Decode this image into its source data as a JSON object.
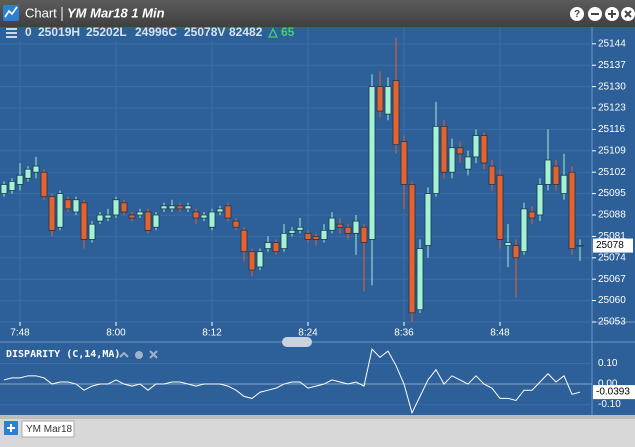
{
  "header": {
    "title": "Chart",
    "symbol": "YM Mar18 1 Min"
  },
  "readout": {
    "fields": [
      "0",
      "25019H",
      "25202L",
      "24996C",
      "25078V",
      "82482"
    ],
    "change": "65"
  },
  "chart_data": [
    {
      "type": "candlestick",
      "open": [
        25095,
        25096,
        25098,
        25100,
        25102,
        25102,
        25094,
        25084,
        25093,
        25089,
        25092,
        25080,
        25086,
        25087,
        25088,
        25092,
        25088,
        25088,
        25089,
        25084,
        25090,
        25090,
        25091,
        25090,
        25089,
        25087,
        25084,
        25089,
        25091,
        25086,
        25083,
        25076,
        25071,
        25077,
        25079,
        25077,
        25082,
        25083,
        25082,
        25081,
        25080,
        25083,
        25085,
        25084,
        25082,
        25084,
        25080,
        25130,
        25121,
        25132,
        25112,
        25098,
        25057,
        25078,
        25095,
        25117,
        25102,
        25110,
        25103,
        25107,
        25114,
        25104,
        25101,
        25078,
        25078,
        25076,
        25089,
        25088,
        25098,
        25104,
        25095,
        25102,
        25078
      ],
      "high": [
        25099,
        25100,
        25105,
        25104,
        25107,
        25103,
        25095,
        25096,
        25094,
        25094,
        25093,
        25086,
        25089,
        25090,
        25094,
        25093,
        25089,
        25090,
        25090,
        25089,
        25092,
        25093,
        25092,
        25092,
        25090,
        25089,
        25090,
        25091,
        25092,
        25087,
        25084,
        25077,
        25077,
        25081,
        25080,
        25085,
        25084,
        25087,
        25083,
        25082,
        25085,
        25089,
        25087,
        25085,
        25088,
        25085,
        25134,
        25135,
        25133,
        25146,
        25114,
        25099,
        25080,
        25097,
        25125,
        25119,
        25113,
        25112,
        25109,
        25116,
        25115,
        25106,
        25103,
        25085,
        25080,
        25092,
        25091,
        25100,
        25116,
        25106,
        25108,
        25104,
        25080
      ],
      "low": [
        25094,
        25095,
        25096,
        25099,
        25100,
        25093,
        25081,
        25083,
        25089,
        25088,
        25077,
        25079,
        25085,
        25086,
        25087,
        25088,
        25086,
        25087,
        25082,
        25083,
        25089,
        25089,
        25089,
        25089,
        25085,
        25086,
        25083,
        25088,
        25086,
        25083,
        25073,
        25068,
        25070,
        25076,
        25075,
        25076,
        25081,
        25082,
        25079,
        25078,
        25079,
        25082,
        25082,
        25080,
        25075,
        25063,
        25065,
        25120,
        25119,
        25108,
        25090,
        25053,
        25056,
        25074,
        25094,
        25100,
        25100,
        25105,
        25101,
        25105,
        25103,
        25096,
        25077,
        25071,
        25061,
        25075,
        25085,
        25086,
        25096,
        25096,
        25093,
        25075,
        25073
      ],
      "close": [
        25098,
        25099,
        25101,
        25103,
        25104,
        25094,
        25083,
        25095,
        25090,
        25093,
        25080,
        25085,
        25088,
        25088,
        25093,
        25089,
        25087,
        25089,
        25083,
        25088,
        25091,
        25091,
        25090,
        25091,
        25087,
        25088,
        25089,
        25090,
        25087,
        25084,
        25076,
        25070,
        25076,
        25079,
        25076,
        25082,
        25083,
        25084,
        25080,
        25080,
        25083,
        25087,
        25084,
        25082,
        25086,
        25079,
        25130,
        25122,
        25130,
        25111,
        25098,
        25056,
        25077,
        25095,
        25117,
        25102,
        25110,
        25108,
        25107,
        25114,
        25105,
        25098,
        25080,
        25079,
        25074,
        25090,
        25087,
        25098,
        25106,
        25098,
        25101,
        25077,
        25078
      ],
      "up_color": "#a3f2d4",
      "down_color": "#e5622f",
      "ylim": [
        25053,
        25149.5
      ],
      "yticks": [
        25053,
        25060,
        25067,
        25074,
        25081,
        25088,
        25095,
        25102,
        25109,
        25116,
        25123,
        25130,
        25137,
        25144
      ],
      "xticks": [
        {
          "value": 2,
          "label": "7:48"
        },
        {
          "value": 14,
          "label": "8:00"
        },
        {
          "value": 26,
          "label": "8:12"
        },
        {
          "value": 38,
          "label": "8:24"
        },
        {
          "value": 50,
          "label": "8:36"
        },
        {
          "value": 62,
          "label": "8:48"
        }
      ],
      "grid": true
    },
    {
      "type": "line",
      "title": "DISPARITY (C,14,MA)",
      "color": "#ffffff",
      "values": [
        0.02,
        0.03,
        0.03,
        0.04,
        0.04,
        0.03,
        0.0,
        0.01,
        0.01,
        0.0,
        -0.03,
        -0.01,
        0.0,
        0.0,
        0.02,
        0.0,
        -0.01,
        0.0,
        -0.03,
        0.0,
        0.0,
        0.01,
        0.01,
        0.0,
        -0.01,
        0.0,
        0.0,
        0.0,
        -0.01,
        -0.03,
        -0.06,
        -0.07,
        -0.04,
        -0.03,
        -0.02,
        0.0,
        0.01,
        0.01,
        -0.02,
        -0.01,
        0.0,
        0.02,
        0.01,
        0.0,
        0.01,
        -0.01,
        0.17,
        0.13,
        0.16,
        0.09,
        0.0,
        -0.14,
        -0.06,
        0.02,
        0.07,
        0.0,
        0.04,
        0.02,
        0.0,
        0.04,
        0.0,
        -0.02,
        -0.07,
        -0.07,
        -0.08,
        -0.03,
        -0.03,
        0.01,
        0.05,
        0.01,
        0.04,
        -0.05,
        -0.0393
      ],
      "ylim": [
        -0.141,
        0.19
      ],
      "yticks": [
        {
          "value": 0.1,
          "label": "0.10"
        },
        {
          "value": 0,
          "label": "0.00"
        },
        {
          "value": -0.1,
          "label": "-0.10"
        }
      ]
    }
  ],
  "tabs": [
    "YM Mar18"
  ]
}
